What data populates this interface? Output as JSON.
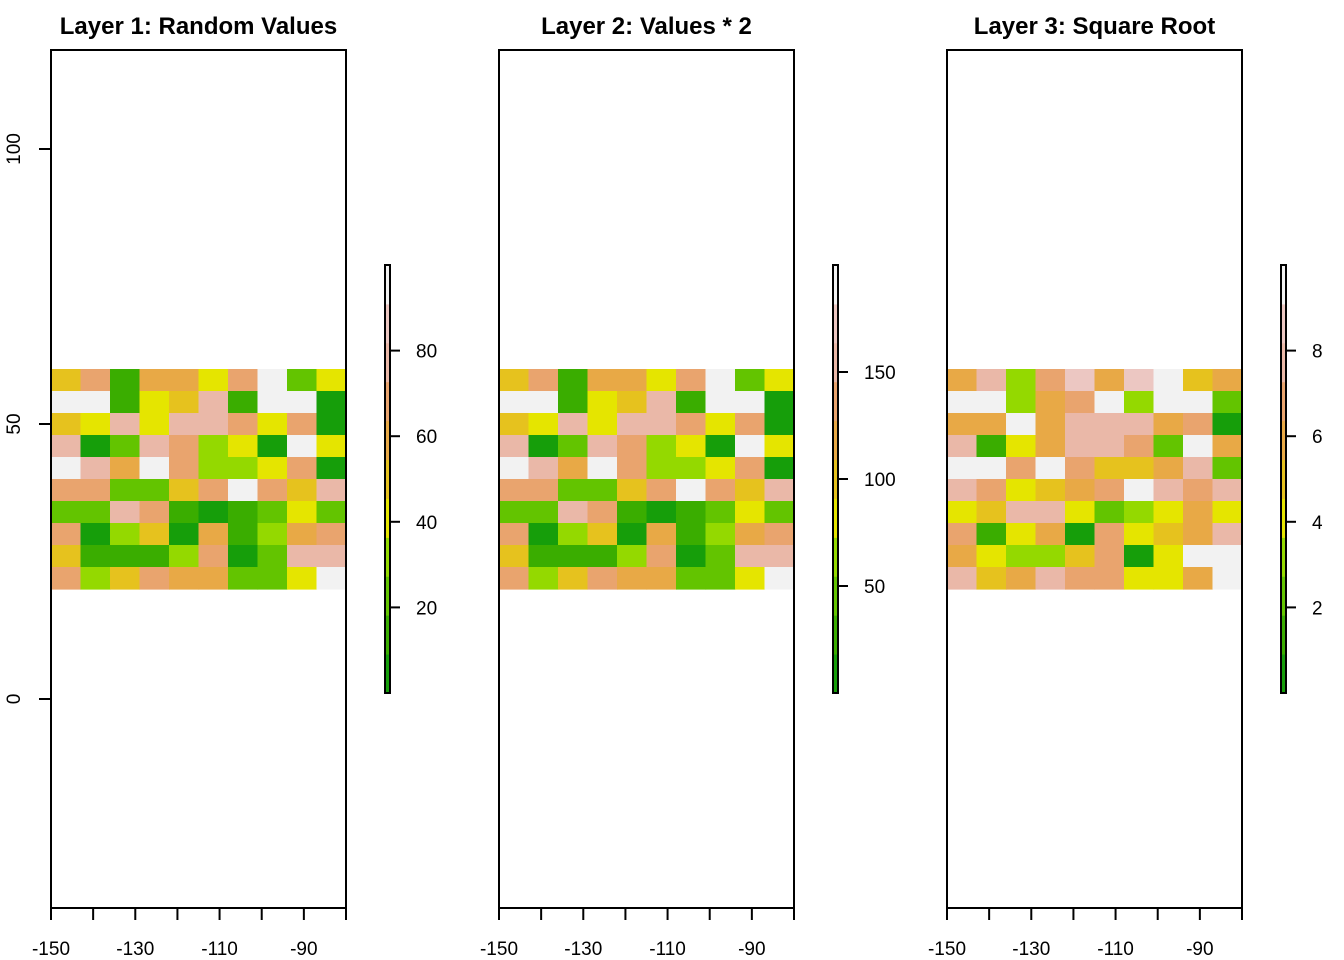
{
  "chart_data": [
    {
      "type": "heatmap",
      "title": "Layer 1: Random Values",
      "xlim": [
        -150,
        -80
      ],
      "ylim": [
        -38,
        118
      ],
      "x_ticks": [
        -150,
        -140,
        -130,
        -120,
        -110,
        -100,
        -90,
        -80
      ],
      "x_tick_labels": [
        "-150",
        "-130",
        "-110",
        "-90"
      ],
      "y_tick_labels": [
        "0",
        "50",
        "100"
      ],
      "y_ticks": [
        0,
        50,
        100
      ],
      "raster_extent": {
        "xmin": -150,
        "xmax": -80,
        "ymin": 20,
        "ymax": 60
      },
      "grid": {
        "ncol": 10,
        "nrow": 10
      },
      "legend": {
        "range": [
          0,
          100
        ],
        "ticks": [
          20,
          40,
          60,
          80
        ],
        "labels": [
          "20",
          "40",
          "60",
          "80"
        ],
        "placement": "right"
      },
      "palette": [
        "#169e0a",
        "#3aad00",
        "#63c400",
        "#94d900",
        "#e5e500",
        "#e6c21e",
        "#e8a946",
        "#e9a46e",
        "#eab8a8",
        "#ecc7c2",
        "#f2f2f2"
      ],
      "color_index": [
        [
          5,
          7,
          1,
          6,
          6,
          4,
          7,
          10,
          2,
          4
        ],
        [
          10,
          10,
          1,
          4,
          5,
          8,
          1,
          10,
          10,
          0
        ],
        [
          5,
          4,
          8,
          4,
          8,
          8,
          7,
          4,
          7,
          0
        ],
        [
          8,
          0,
          2,
          8,
          7,
          3,
          4,
          0,
          10,
          4
        ],
        [
          10,
          8,
          6,
          10,
          7,
          3,
          3,
          4,
          7,
          0
        ],
        [
          7,
          7,
          2,
          2,
          5,
          7,
          10,
          7,
          5,
          8
        ],
        [
          2,
          2,
          8,
          7,
          1,
          0,
          1,
          2,
          4,
          2
        ],
        [
          7,
          0,
          3,
          5,
          0,
          6,
          1,
          3,
          6,
          7
        ],
        [
          5,
          1,
          1,
          1,
          3,
          7,
          0,
          2,
          8,
          8
        ],
        [
          7,
          3,
          5,
          7,
          6,
          6,
          2,
          2,
          4,
          10
        ]
      ]
    },
    {
      "type": "heatmap",
      "title": "Layer 2: Values * 2",
      "xlim": [
        -150,
        -80
      ],
      "ylim": [
        -38,
        118
      ],
      "x_ticks": [
        -150,
        -140,
        -130,
        -120,
        -110,
        -100,
        -90,
        -80
      ],
      "x_tick_labels": [
        "-150",
        "-130",
        "-110",
        "-90"
      ],
      "y_tick_labels": [],
      "y_ticks": [],
      "raster_extent": {
        "xmin": -150,
        "xmax": -80,
        "ymin": 20,
        "ymax": 60
      },
      "grid": {
        "ncol": 10,
        "nrow": 10
      },
      "legend": {
        "range": [
          0,
          200
        ],
        "ticks": [
          50,
          100,
          150
        ],
        "labels": [
          "50",
          "100",
          "150"
        ],
        "placement": "right"
      },
      "palette": [
        "#169e0a",
        "#3aad00",
        "#63c400",
        "#94d900",
        "#e5e500",
        "#e6c21e",
        "#e8a946",
        "#e9a46e",
        "#eab8a8",
        "#ecc7c2",
        "#f2f2f2"
      ],
      "color_index": [
        [
          5,
          7,
          1,
          6,
          6,
          4,
          7,
          10,
          2,
          4
        ],
        [
          10,
          10,
          1,
          4,
          5,
          8,
          1,
          10,
          10,
          0
        ],
        [
          5,
          4,
          8,
          4,
          8,
          8,
          7,
          4,
          7,
          0
        ],
        [
          8,
          0,
          2,
          8,
          7,
          3,
          4,
          0,
          10,
          4
        ],
        [
          10,
          8,
          6,
          10,
          7,
          3,
          3,
          4,
          7,
          0
        ],
        [
          7,
          7,
          2,
          2,
          5,
          7,
          10,
          7,
          5,
          8
        ],
        [
          2,
          2,
          8,
          7,
          1,
          0,
          1,
          2,
          4,
          2
        ],
        [
          7,
          0,
          3,
          5,
          0,
          6,
          1,
          3,
          6,
          7
        ],
        [
          5,
          1,
          1,
          1,
          3,
          7,
          0,
          2,
          8,
          8
        ],
        [
          7,
          3,
          5,
          7,
          6,
          6,
          2,
          2,
          4,
          10
        ]
      ]
    },
    {
      "type": "heatmap",
      "title": "Layer 3: Square Root",
      "xlim": [
        -150,
        -80
      ],
      "ylim": [
        -38,
        118
      ],
      "x_ticks": [
        -150,
        -140,
        -130,
        -120,
        -110,
        -100,
        -90,
        -80
      ],
      "x_tick_labels": [
        "-150",
        "-130",
        "-110",
        "-90"
      ],
      "y_tick_labels": [],
      "y_ticks": [],
      "raster_extent": {
        "xmin": -150,
        "xmax": -80,
        "ymin": 20,
        "ymax": 60
      },
      "grid": {
        "ncol": 10,
        "nrow": 10
      },
      "legend": {
        "range": [
          0,
          10
        ],
        "ticks": [
          2,
          4,
          6,
          8
        ],
        "labels": [
          "2",
          "4",
          "6",
          "8"
        ],
        "placement": "right"
      },
      "palette": [
        "#169e0a",
        "#3aad00",
        "#63c400",
        "#94d900",
        "#e5e500",
        "#e6c21e",
        "#e8a946",
        "#e9a46e",
        "#eab8a8",
        "#ecc7c2",
        "#f2f2f2"
      ],
      "color_index": [
        [
          6,
          8,
          3,
          7,
          9,
          6,
          9,
          10,
          5,
          6
        ],
        [
          10,
          10,
          3,
          6,
          7,
          10,
          3,
          10,
          10,
          2
        ],
        [
          6,
          6,
          10,
          6,
          8,
          8,
          8,
          6,
          7,
          0
        ],
        [
          8,
          1,
          4,
          6,
          8,
          8,
          7,
          2,
          10,
          6
        ],
        [
          10,
          10,
          7,
          10,
          7,
          5,
          5,
          6,
          8,
          2
        ],
        [
          8,
          7,
          4,
          5,
          6,
          7,
          10,
          8,
          7,
          8
        ],
        [
          4,
          5,
          8,
          8,
          4,
          2,
          3,
          4,
          6,
          4
        ],
        [
          7,
          1,
          4,
          6,
          0,
          7,
          4,
          5,
          6,
          8
        ],
        [
          6,
          4,
          3,
          3,
          5,
          7,
          0,
          4,
          10,
          10
        ],
        [
          8,
          5,
          6,
          8,
          7,
          7,
          4,
          4,
          6,
          10
        ]
      ]
    }
  ]
}
